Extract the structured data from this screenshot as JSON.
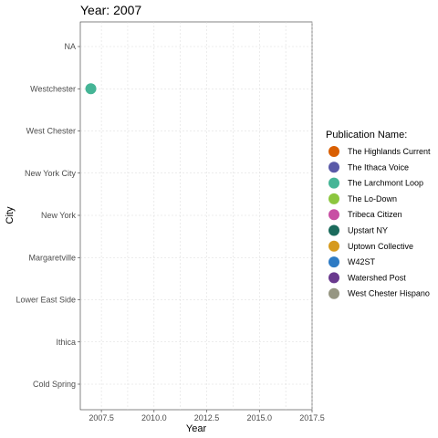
{
  "chart_data": {
    "type": "scatter",
    "title": "Year: 2007",
    "xlabel": "Year",
    "ylabel": "City",
    "xlim": [
      2006.5,
      2017.5
    ],
    "x_ticks": [
      "2007.5",
      "2010.0",
      "2012.5",
      "2015.0",
      "2017.5"
    ],
    "x_tick_values": [
      2007.5,
      2010.0,
      2012.5,
      2015.0,
      2017.5
    ],
    "categories": [
      "NA",
      "Westchester",
      "West Chester",
      "New York City",
      "New York",
      "Margaretville",
      "Lower East Side",
      "Ithica",
      "Cold Spring"
    ],
    "grid": true,
    "legend_position": "right",
    "legend_title": "Publication Name:",
    "legend": [
      {
        "name": "The Highlands Current",
        "color": "#D95F02"
      },
      {
        "name": "The Ithaca Voice",
        "color": "#5A5AA8"
      },
      {
        "name": "The Larchmont Loop",
        "color": "#45B596"
      },
      {
        "name": "The Lo-Down",
        "color": "#8CC63F"
      },
      {
        "name": "Tribeca Citizen",
        "color": "#C84FA4"
      },
      {
        "name": "Upstart NY",
        "color": "#1B6B5C"
      },
      {
        "name": "Uptown Collective",
        "color": "#D69A1E"
      },
      {
        "name": "W42ST",
        "color": "#2E7BC4"
      },
      {
        "name": "Watershed Post",
        "color": "#6A3A8E"
      },
      {
        "name": "West Chester Hispano",
        "color": "#969682"
      }
    ],
    "points": [
      {
        "x": 2007,
        "y": "Westchester",
        "series": "The Larchmont Loop"
      }
    ]
  }
}
